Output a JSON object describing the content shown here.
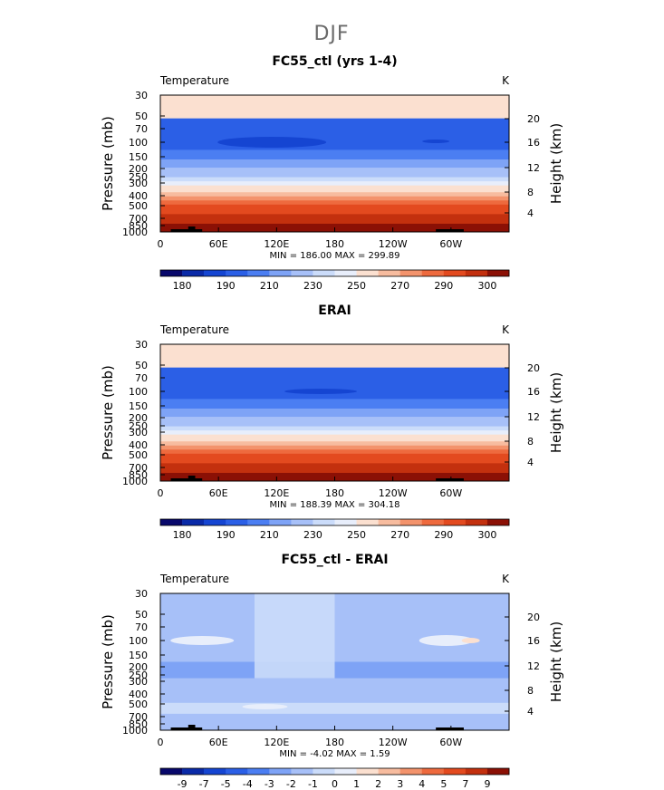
{
  "figure_title": "DJF",
  "chart_data": [
    {
      "type": "heatmap",
      "title": "FC55_ctl (yrs 1-4)",
      "left_label": "Temperature",
      "right_label": "K",
      "ylabel": "Pressure (mb)",
      "y2label": "Height (km)",
      "x_ticks": [
        "0",
        "60E",
        "120E",
        "180",
        "120W",
        "60W"
      ],
      "y_ticks": [
        "30",
        "50",
        "70",
        "100",
        "150",
        "200",
        "250",
        "300",
        "400",
        "500",
        "700",
        "850",
        "1000"
      ],
      "y2_ticks": [
        "20",
        "16",
        "12",
        "8",
        "4"
      ],
      "min_max_text": "MIN = 186.00  MAX = 299.89",
      "colorbar_ticks": [
        "180",
        "190",
        "210",
        "230",
        "250",
        "270",
        "290",
        "300"
      ],
      "colors": [
        "#08086b",
        "#0a2aa8",
        "#1545d2",
        "#2b5fe6",
        "#4b7ef2",
        "#7ea3f6",
        "#a7c0f8",
        "#cbdcfa",
        "#e8eefb",
        "#fbe0d0",
        "#f7bc9f",
        "#f3936c",
        "#ee6a3e",
        "#e34a1f",
        "#c3300e",
        "#8b1005"
      ],
      "levels": [
        170,
        180,
        190,
        200,
        210,
        220,
        230,
        240,
        250,
        255,
        260,
        270,
        280,
        290,
        295,
        300
      ]
    },
    {
      "type": "heatmap",
      "title": "ERAI",
      "left_label": "Temperature",
      "right_label": "K",
      "ylabel": "Pressure (mb)",
      "y2label": "Height (km)",
      "x_ticks": [
        "0",
        "60E",
        "120E",
        "180",
        "120W",
        "60W"
      ],
      "y_ticks": [
        "30",
        "50",
        "70",
        "100",
        "150",
        "200",
        "250",
        "300",
        "400",
        "500",
        "700",
        "850",
        "1000"
      ],
      "y2_ticks": [
        "20",
        "16",
        "12",
        "8",
        "4"
      ],
      "min_max_text": "MIN = 188.39  MAX = 304.18",
      "colorbar_ticks": [
        "180",
        "190",
        "210",
        "230",
        "250",
        "270",
        "290",
        "300"
      ],
      "colors": [
        "#08086b",
        "#0a2aa8",
        "#1545d2",
        "#2b5fe6",
        "#4b7ef2",
        "#7ea3f6",
        "#a7c0f8",
        "#cbdcfa",
        "#e8eefb",
        "#fbe0d0",
        "#f7bc9f",
        "#f3936c",
        "#ee6a3e",
        "#e34a1f",
        "#c3300e",
        "#8b1005"
      ],
      "levels": [
        170,
        180,
        190,
        200,
        210,
        220,
        230,
        240,
        250,
        255,
        260,
        270,
        280,
        290,
        295,
        300
      ]
    },
    {
      "type": "heatmap",
      "title": "FC55_ctl - ERAI",
      "left_label": "Temperature",
      "right_label": "K",
      "ylabel": "Pressure (mb)",
      "y2label": "Height (km)",
      "x_ticks": [
        "0",
        "60E",
        "120E",
        "180",
        "120W",
        "60W"
      ],
      "y_ticks": [
        "30",
        "50",
        "70",
        "100",
        "150",
        "200",
        "250",
        "300",
        "400",
        "500",
        "700",
        "850",
        "1000"
      ],
      "y2_ticks": [
        "20",
        "16",
        "12",
        "8",
        "4"
      ],
      "min_max_text": "MIN =  -4.02  MAX =   1.59",
      "colorbar_ticks": [
        "-9",
        "-7",
        "-5",
        "-4",
        "-3",
        "-2",
        "-1",
        "0",
        "1",
        "2",
        "3",
        "4",
        "5",
        "7",
        "9"
      ],
      "colors": [
        "#08086b",
        "#0a2aa8",
        "#1545d2",
        "#2b5fe6",
        "#4b7ef2",
        "#7ea3f6",
        "#a7c0f8",
        "#cbdcfa",
        "#e8eefb",
        "#fbe0d0",
        "#f7bc9f",
        "#f3936c",
        "#ee6a3e",
        "#e34a1f",
        "#c3300e",
        "#8b1005"
      ],
      "levels": [
        -10,
        -9,
        -7,
        -5,
        -4,
        -3,
        -2,
        -1,
        0,
        1,
        2,
        3,
        4,
        5,
        7,
        9
      ]
    }
  ]
}
